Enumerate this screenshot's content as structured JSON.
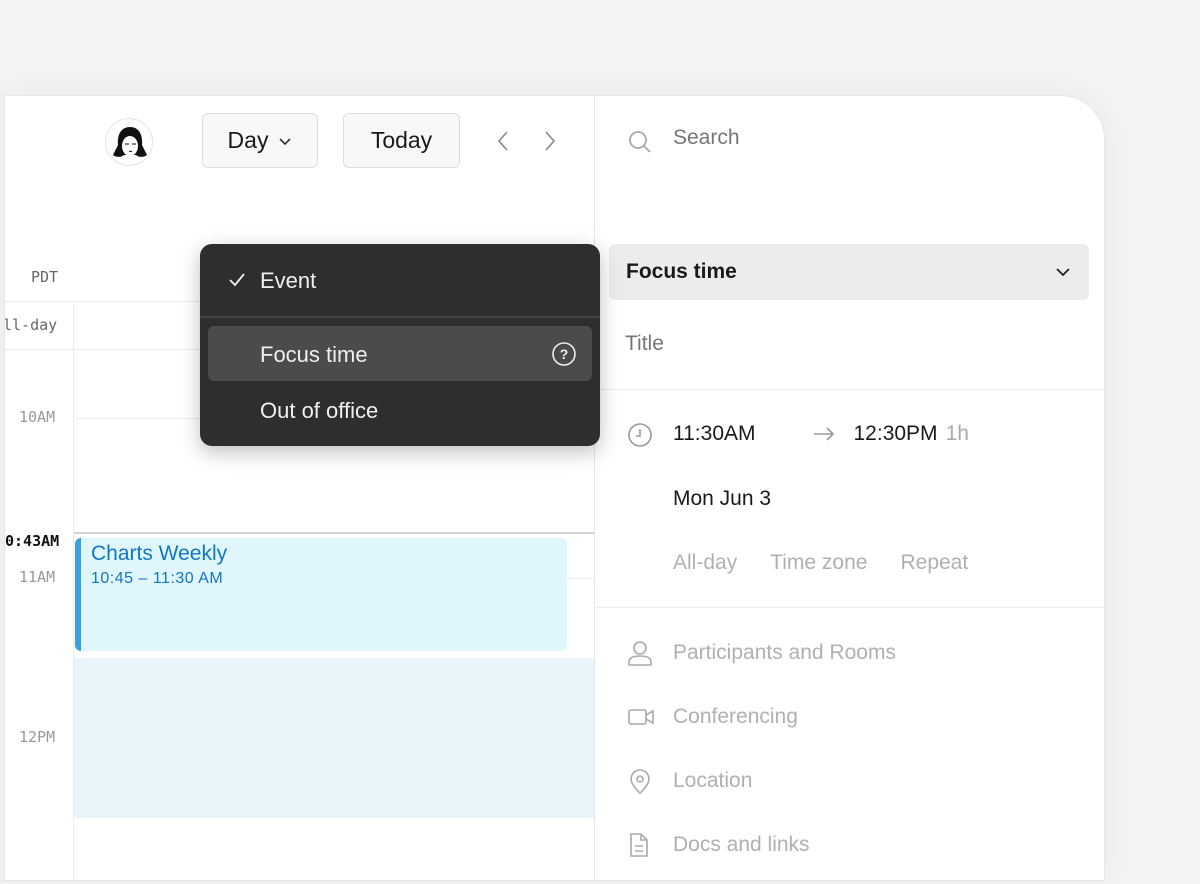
{
  "toolbar": {
    "view_label": "Day",
    "today_label": "Today"
  },
  "calendar": {
    "timezone": "PDT",
    "allday": "ll-day",
    "hours": [
      "10AM",
      "11AM",
      "12PM"
    ],
    "current_time": "0:43AM",
    "event": {
      "title": "Charts Weekly",
      "time": "10:45 – 11:30 AM",
      "color": "#3aa0e0",
      "bg": "#e0f6fd"
    }
  },
  "menu": {
    "items": [
      {
        "label": "Event",
        "checked": true
      },
      {
        "label": "Focus time",
        "highlighted": true
      },
      {
        "label": "Out of office"
      }
    ]
  },
  "panel": {
    "search_placeholder": "Search",
    "type_label": "Focus time",
    "title_placeholder": "Title",
    "start": "11:30AM",
    "end": "12:30PM",
    "duration": "1h",
    "date": "Mon Jun 3",
    "options": [
      "All-day",
      "Time zone",
      "Repeat"
    ],
    "fields": [
      "Participants and Rooms",
      "Conferencing",
      "Location",
      "Docs and links"
    ]
  }
}
